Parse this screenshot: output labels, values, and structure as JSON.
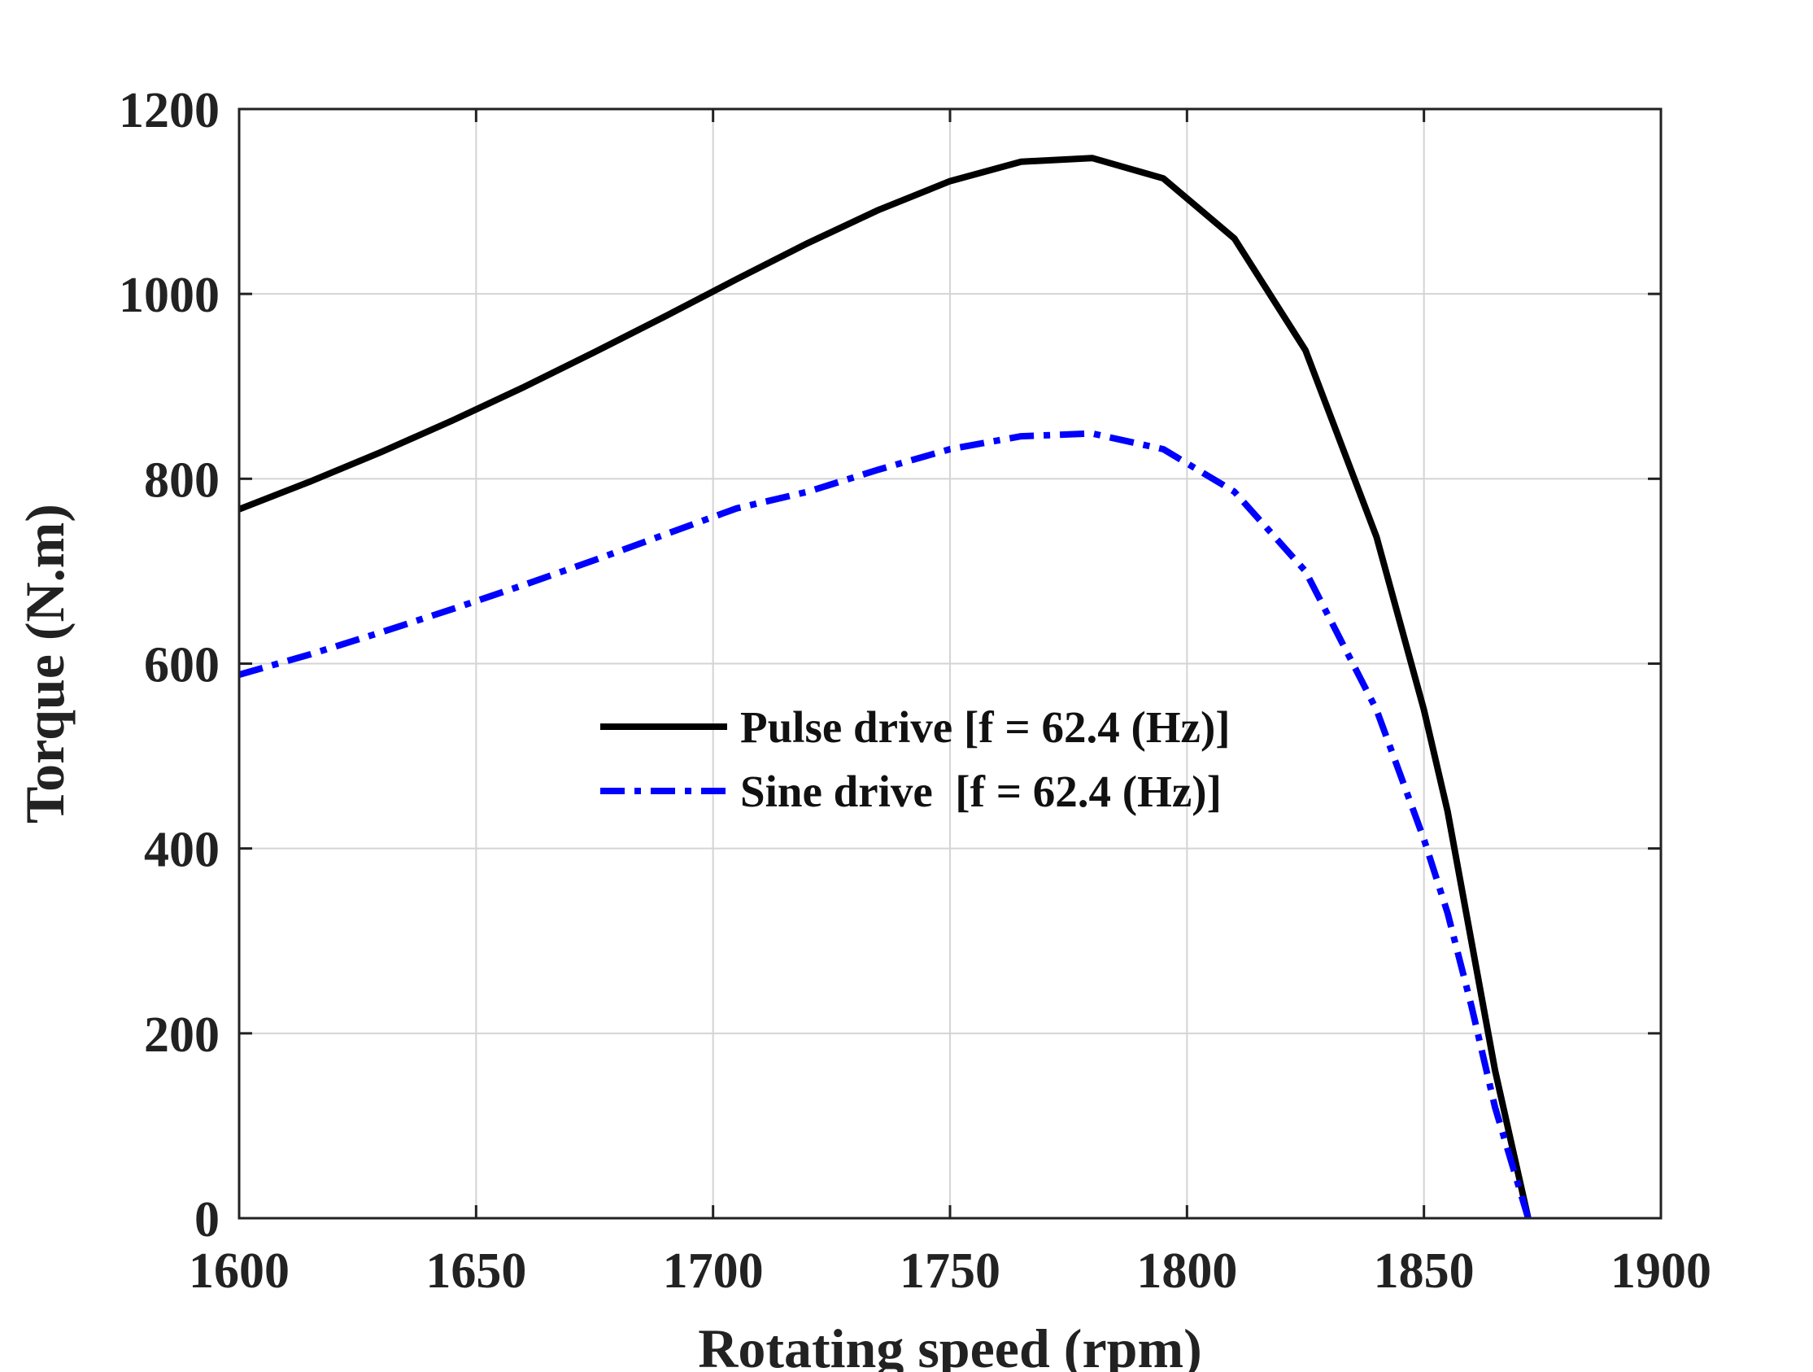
{
  "chart_data": {
    "type": "line",
    "title": "",
    "xlabel": "Rotating speed (rpm)",
    "ylabel": "Torque (N.m)",
    "xlim": [
      1600,
      1900
    ],
    "ylim": [
      0,
      1200
    ],
    "xticks": [
      "1600",
      "1650",
      "1700",
      "1750",
      "1800",
      "1850",
      "1900"
    ],
    "yticks": [
      "0",
      "200",
      "400",
      "600",
      "800",
      "1000",
      "1200"
    ],
    "grid": true,
    "legend_position": "center",
    "series": [
      {
        "name": "Pulse drive [f = 62.4 (Hz)]",
        "color": "#000000",
        "style": "solid",
        "x": [
          1600,
          1615,
          1630,
          1645,
          1660,
          1675,
          1690,
          1705,
          1720,
          1735,
          1750,
          1765,
          1780,
          1795,
          1810,
          1825,
          1840,
          1850,
          1855,
          1860,
          1865,
          1872
        ],
        "y": [
          767,
          797,
          829,
          863,
          899,
          937,
          976,
          1016,
          1055,
          1091,
          1122,
          1143,
          1147,
          1125,
          1060,
          939,
          737,
          550,
          440,
          300,
          160,
          0
        ]
      },
      {
        "name": "Sine drive  [f = 62.4 (Hz)]",
        "color": "#0000ff",
        "style": "dashdot",
        "x": [
          1600,
          1615,
          1630,
          1645,
          1660,
          1675,
          1690,
          1705,
          1720,
          1735,
          1750,
          1765,
          1780,
          1795,
          1810,
          1825,
          1840,
          1850,
          1855,
          1860,
          1865,
          1872
        ],
        "y": [
          588,
          610,
          634,
          659,
          685,
          712,
          740,
          768,
          786,
          810,
          832,
          846,
          849,
          832,
          786,
          700,
          550,
          410,
          330,
          230,
          120,
          0
        ]
      }
    ]
  }
}
